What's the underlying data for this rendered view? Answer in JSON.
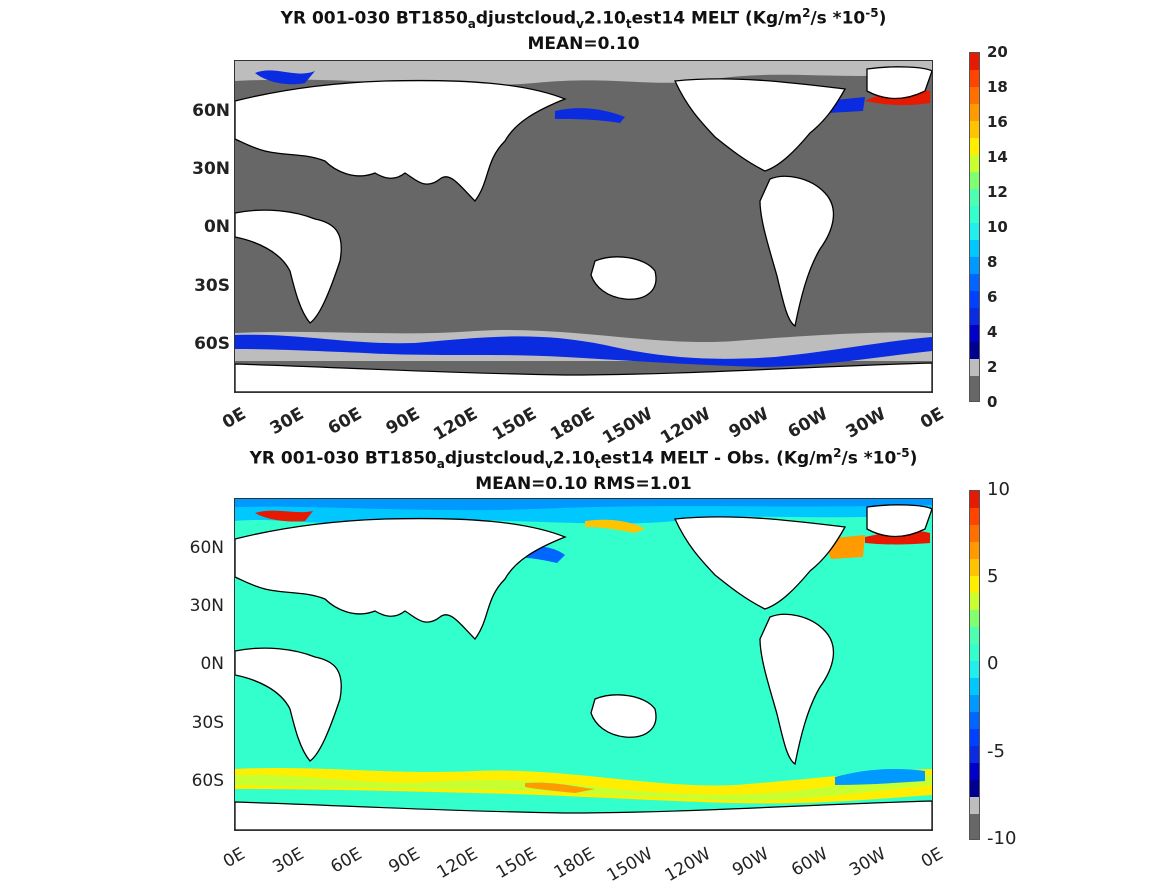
{
  "panel1": {
    "title_a": "YR 001-030 BT1850",
    "title_sub1": "a",
    "title_b": "djustcloud",
    "title_sub2": "v",
    "title_c": "2.10",
    "title_sub3": "t",
    "title_d": "est14 MELT (Kg/m",
    "title_sup1": "2",
    "title_e": "/s   *10",
    "title_sup2": "-5",
    "title_f": ")",
    "subtitle": "MEAN=0.10",
    "lat_labels": [
      "60N",
      "30N",
      "0N",
      "30S",
      "60S"
    ],
    "lon_labels": [
      "0E",
      "30E",
      "60E",
      "90E",
      "120E",
      "150E",
      "180E",
      "150W",
      "120W",
      "90W",
      "60W",
      "30W",
      "0E"
    ],
    "colorbar_ticks": [
      "20",
      "18",
      "16",
      "14",
      "12",
      "10",
      "8",
      "6",
      "4",
      "2",
      "0"
    ],
    "ocean_color": "#676767",
    "land_color": "#ffffff"
  },
  "panel2": {
    "title_a": "YR 001-030 BT1850",
    "title_sub1": "a",
    "title_b": "djustcloud",
    "title_sub2": "v",
    "title_c": "2.10",
    "title_sub3": "t",
    "title_d": "est14 MELT - Obs. (Kg/m",
    "title_sup1": "2",
    "title_e": "/s *10",
    "title_sup2": "-5",
    "title_f": ")",
    "subtitle": "MEAN=0.10   RMS=1.01",
    "lat_labels": [
      "60N",
      "30N",
      "0N",
      "30S",
      "60S"
    ],
    "lon_labels": [
      "0E",
      "30E",
      "60E",
      "90E",
      "120E",
      "150E",
      "180E",
      "150W",
      "120W",
      "90W",
      "60W",
      "30W",
      "0E"
    ],
    "colorbar_ticks": [
      "10",
      "5",
      "0",
      "-5",
      "-10"
    ],
    "ocean_color": "#33ffcc",
    "land_color": "#ffffff"
  }
}
